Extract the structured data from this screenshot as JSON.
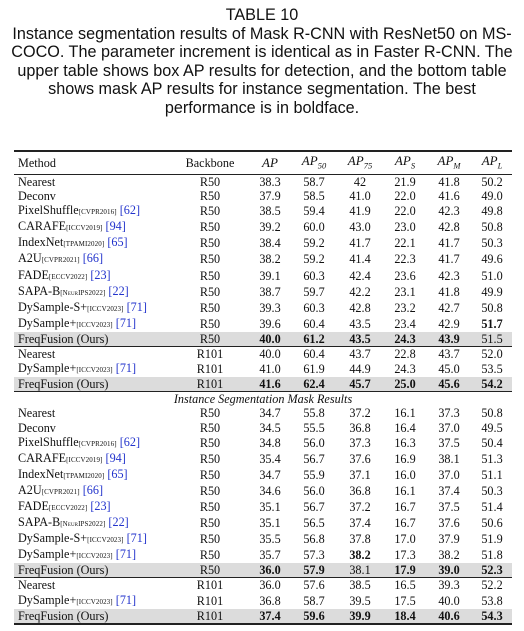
{
  "caption": {
    "label": "TABLE 10",
    "text": "Instance segmentation results of Mask R-CNN with ResNet50 on MS-COCO. The parameter increment is identical as in Faster R-CNN. The upper table shows box AP results for detection, and the bottom table shows mask AP results for instance segmentation. The best performance is in boldface."
  },
  "table": {
    "columns": [
      {
        "text": "Method"
      },
      {
        "text": "Backbone"
      },
      {
        "text": "AP"
      },
      {
        "text": "AP",
        "sub": "50"
      },
      {
        "text": "AP",
        "sub": "75"
      },
      {
        "text": "AP",
        "sub": "S"
      },
      {
        "text": "AP",
        "sub": "M"
      },
      {
        "text": "AP",
        "sub": "L"
      }
    ],
    "blocks": [
      {
        "groups": [
          [
            {
              "method": {
                "name": "Nearest"
              },
              "backbone": "R50",
              "values": [
                "38.3",
                "58.7",
                "42",
                "21.9",
                "41.8",
                "50.2"
              ]
            },
            {
              "method": {
                "name": "Deconv"
              },
              "backbone": "R50",
              "values": [
                "37.9",
                "58.5",
                "41.0",
                "22.0",
                "41.6",
                "49.0"
              ]
            },
            {
              "method": {
                "name": "PixelShuffle",
                "venue": "[CVPR2016]",
                "ref": "[62]"
              },
              "backbone": "R50",
              "values": [
                "38.5",
                "59.4",
                "41.9",
                "22.0",
                "42.3",
                "49.8"
              ]
            },
            {
              "method": {
                "name": "CARAFE",
                "venue": "[ICCV2019]",
                "ref": "[94]"
              },
              "backbone": "R50",
              "values": [
                "39.2",
                "60.0",
                "43.0",
                "23.0",
                "42.8",
                "50.8"
              ]
            },
            {
              "method": {
                "name": "IndexNet",
                "venue": "[TPAMI2020]",
                "ref": "[65]"
              },
              "backbone": "R50",
              "values": [
                "38.4",
                "59.2",
                "41.7",
                "22.1",
                "41.7",
                "50.3"
              ]
            },
            {
              "method": {
                "name": "A2U",
                "venue": "[CVPR2021]",
                "ref": "[66]"
              },
              "backbone": "R50",
              "values": [
                "38.2",
                "59.2",
                "41.4",
                "22.3",
                "41.7",
                "49.6"
              ]
            },
            {
              "method": {
                "name": "FADE",
                "venue": "[ECCV2022]",
                "ref": "[23]"
              },
              "backbone": "R50",
              "values": [
                "39.1",
                "60.3",
                "42.4",
                "23.6",
                "42.3",
                "51.0"
              ]
            },
            {
              "method": {
                "name": "SAPA-B",
                "venue": "[NeurIPS2022]",
                "ref": "[22]"
              },
              "backbone": "R50",
              "values": [
                "38.7",
                "59.7",
                "42.2",
                "23.1",
                "41.8",
                "49.9"
              ]
            },
            {
              "method": {
                "name": "DySample-S+",
                "venue": "[ICCV2023]",
                "ref": "[71]"
              },
              "backbone": "R50",
              "values": [
                "39.3",
                "60.3",
                "42.8",
                "23.2",
                "42.7",
                "50.8"
              ]
            },
            {
              "method": {
                "name": "DySample+",
                "venue": "[ICCV2023]",
                "ref": "[71]"
              },
              "backbone": "R50",
              "values": [
                "39.6",
                "60.4",
                "43.5",
                "23.4",
                "42.9",
                "51.7"
              ],
              "bold": [
                5
              ]
            },
            {
              "method": {
                "name": "FreqFusion (Ours)"
              },
              "backbone": "R50",
              "values": [
                "40.0",
                "61.2",
                "43.5",
                "24.3",
                "43.9",
                "51.5"
              ],
              "bold": [
                0,
                1,
                2,
                3,
                4
              ],
              "highlight": true
            }
          ],
          [
            {
              "method": {
                "name": "Nearest"
              },
              "backbone": "R101",
              "values": [
                "40.0",
                "60.4",
                "43.7",
                "22.8",
                "43.7",
                "52.0"
              ]
            },
            {
              "method": {
                "name": "DySample+",
                "venue": "[ICCV2023]",
                "ref": "[71]"
              },
              "backbone": "R101",
              "values": [
                "41.0",
                "61.9",
                "44.9",
                "24.3",
                "45.0",
                "53.5"
              ]
            },
            {
              "method": {
                "name": "FreqFusion (Ours)"
              },
              "backbone": "R101",
              "values": [
                "41.6",
                "62.4",
                "45.7",
                "25.0",
                "45.6",
                "54.2"
              ],
              "bold": [
                0,
                1,
                2,
                3,
                4,
                5
              ],
              "highlight": true
            }
          ]
        ]
      },
      {
        "title": "Instance Segmentation Mask Results",
        "groups": [
          [
            {
              "method": {
                "name": "Nearest"
              },
              "backbone": "R50",
              "values": [
                "34.7",
                "55.8",
                "37.2",
                "16.1",
                "37.3",
                "50.8"
              ]
            },
            {
              "method": {
                "name": "Deconv"
              },
              "backbone": "R50",
              "values": [
                "34.5",
                "55.5",
                "36.8",
                "16.4",
                "37.0",
                "49.5"
              ]
            },
            {
              "method": {
                "name": "PixelShuffle",
                "venue": "[CVPR2016]",
                "ref": "[62]"
              },
              "backbone": "R50",
              "values": [
                "34.8",
                "56.0",
                "37.3",
                "16.3",
                "37.5",
                "50.4"
              ]
            },
            {
              "method": {
                "name": "CARAFE",
                "venue": "[ICCV2019]",
                "ref": "[94]"
              },
              "backbone": "R50",
              "values": [
                "35.4",
                "56.7",
                "37.6",
                "16.9",
                "38.1",
                "51.3"
              ]
            },
            {
              "method": {
                "name": "IndexNet",
                "venue": "[TPAMI2020]",
                "ref": "[65]"
              },
              "backbone": "R50",
              "values": [
                "34.7",
                "55.9",
                "37.1",
                "16.0",
                "37.0",
                "51.1"
              ]
            },
            {
              "method": {
                "name": "A2U",
                "venue": "[CVPR2021]",
                "ref": "[66]"
              },
              "backbone": "R50",
              "values": [
                "34.6",
                "56.0",
                "36.8",
                "16.1",
                "37.4",
                "50.3"
              ]
            },
            {
              "method": {
                "name": "FADE",
                "venue": "[ECCV2022]",
                "ref": "[23]"
              },
              "backbone": "R50",
              "values": [
                "35.1",
                "56.7",
                "37.2",
                "16.7",
                "37.5",
                "51.4"
              ]
            },
            {
              "method": {
                "name": "SAPA-B",
                "venue": "[NeurIPS2022]",
                "ref": "[22]"
              },
              "backbone": "R50",
              "values": [
                "35.1",
                "56.5",
                "37.4",
                "16.7",
                "37.6",
                "50.6"
              ]
            },
            {
              "method": {
                "name": "DySample-S+",
                "venue": "[ICCV2023]",
                "ref": "[71]"
              },
              "backbone": "R50",
              "values": [
                "35.5",
                "56.8",
                "37.8",
                "17.0",
                "37.9",
                "51.9"
              ]
            },
            {
              "method": {
                "name": "DySample+",
                "venue": "[ICCV2023]",
                "ref": "[71]"
              },
              "backbone": "R50",
              "values": [
                "35.7",
                "57.3",
                "38.2",
                "17.3",
                "38.2",
                "51.8"
              ],
              "bold": [
                2
              ]
            },
            {
              "method": {
                "name": "FreqFusion (Ours)"
              },
              "backbone": "R50",
              "values": [
                "36.0",
                "57.9",
                "38.1",
                "17.9",
                "39.0",
                "52.3"
              ],
              "bold": [
                0,
                1,
                3,
                4,
                5
              ],
              "highlight": true
            }
          ],
          [
            {
              "method": {
                "name": "Nearest"
              },
              "backbone": "R101",
              "values": [
                "36.0",
                "57.6",
                "38.5",
                "16.5",
                "39.3",
                "52.2"
              ]
            },
            {
              "method": {
                "name": "DySample+",
                "venue": "[ICCV2023]",
                "ref": "[71]"
              },
              "backbone": "R101",
              "values": [
                "36.8",
                "58.7",
                "39.5",
                "17.5",
                "40.0",
                "53.8"
              ]
            },
            {
              "method": {
                "name": "FreqFusion (Ours)"
              },
              "backbone": "R101",
              "values": [
                "37.4",
                "59.6",
                "39.9",
                "18.4",
                "40.6",
                "54.3"
              ],
              "bold": [
                0,
                1,
                2,
                3,
                4,
                5
              ],
              "highlight": true
            }
          ]
        ]
      }
    ]
  }
}
